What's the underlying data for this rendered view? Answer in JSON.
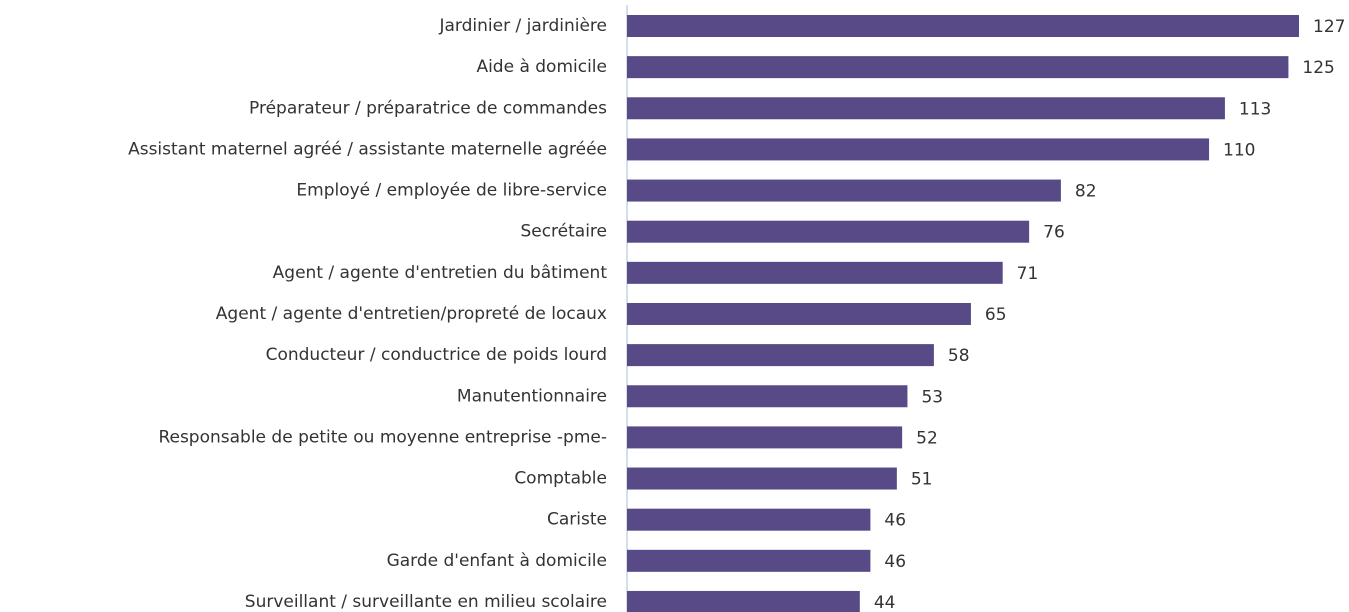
{
  "chart_data": {
    "type": "bar",
    "orientation": "horizontal",
    "categories": [
      "Jardinier / jardinière",
      "Aide à domicile",
      "Préparateur / préparatrice de commandes",
      "Assistant maternel agréé / assistante maternelle agréée",
      "Employé / employée de libre-service",
      "Secrétaire",
      "Agent / agente d'entretien du bâtiment",
      "Agent / agente d'entretien/propreté de locaux",
      "Conducteur / conductrice de poids lourd",
      "Manutentionnaire",
      "Responsable de petite ou moyenne entreprise -pme-",
      "Comptable",
      "Cariste",
      "Garde d'enfant à domicile",
      "Surveillant / surveillante en milieu scolaire"
    ],
    "values": [
      127,
      125,
      113,
      110,
      82,
      76,
      71,
      65,
      58,
      53,
      52,
      51,
      46,
      46,
      44
    ],
    "color": "#574a87",
    "xlim": [
      0,
      127
    ]
  }
}
